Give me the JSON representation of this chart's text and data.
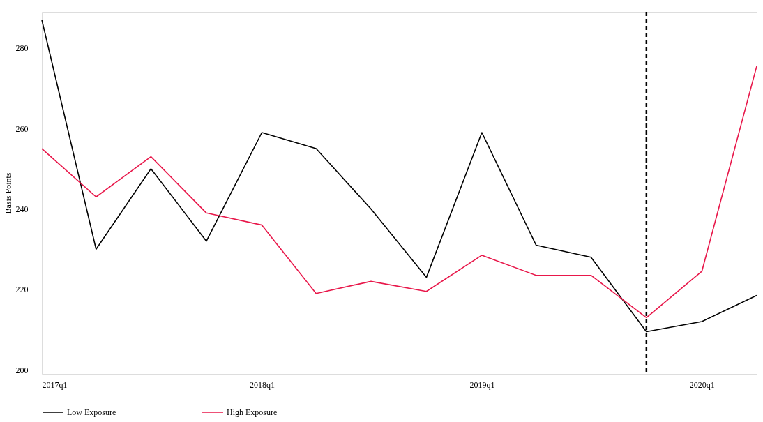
{
  "chart_data": {
    "type": "line",
    "ylabel": "Basis Points",
    "x": [
      "2017-01",
      "2017-04",
      "2017-07",
      "2017-10",
      "2018-01",
      "2018-04",
      "2018-07",
      "2018-10",
      "2019-01",
      "2019-04",
      "2019-07",
      "2019-10",
      "2020-01",
      "2020-04"
    ],
    "series": [
      {
        "name": "Low Exposure",
        "color": "#000000",
        "values": [
          287,
          230,
          250,
          232,
          259,
          255,
          240,
          223,
          259,
          231,
          228,
          209.5,
          212,
          218.5
        ]
      },
      {
        "name": "High Exposure",
        "color": "#e8174a",
        "values": [
          255,
          243,
          253,
          239,
          236,
          219,
          222,
          219.5,
          228.5,
          223.5,
          223.5,
          213,
          224.5,
          275.5
        ]
      }
    ],
    "xlim": [
      "2017-01",
      "2020-04"
    ],
    "xticks": [
      {
        "value": "2017-01",
        "label": "2017q1"
      },
      {
        "value": "2018-01",
        "label": "2018q1"
      },
      {
        "value": "2019-01",
        "label": "2019q1"
      },
      {
        "value": "2020-01",
        "label": "2020q1"
      }
    ],
    "ylim": [
      199,
      289
    ],
    "yticks": [
      200,
      220,
      240,
      260,
      280
    ],
    "ref_lines": [
      {
        "axis": "x",
        "value": "2019-10",
        "color": "#000000",
        "line_style": "dashed"
      }
    ],
    "legend": "bottom",
    "grid": false,
    "line_style": "solid"
  }
}
